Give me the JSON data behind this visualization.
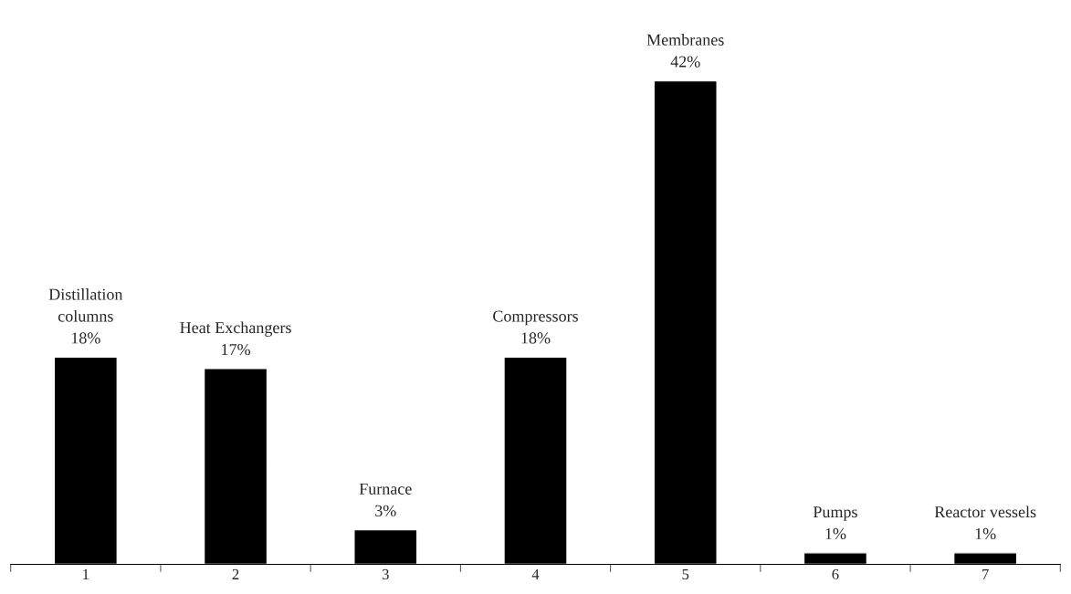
{
  "chart_data": {
    "type": "bar",
    "categories": [
      "1",
      "2",
      "3",
      "4",
      "5",
      "6",
      "7"
    ],
    "values": [
      18,
      17,
      3,
      18,
      42,
      1,
      1
    ],
    "value_labels": [
      "Distillation\ncolumns\n18%",
      "Heat Exchangers\n17%",
      "Furnace\n3%",
      "Compressors\n18%",
      "Membranes\n42%",
      "Pumps\n1%",
      "Reactor vessels\n1%"
    ],
    "color": "#000000",
    "grid": false,
    "legend": false
  }
}
